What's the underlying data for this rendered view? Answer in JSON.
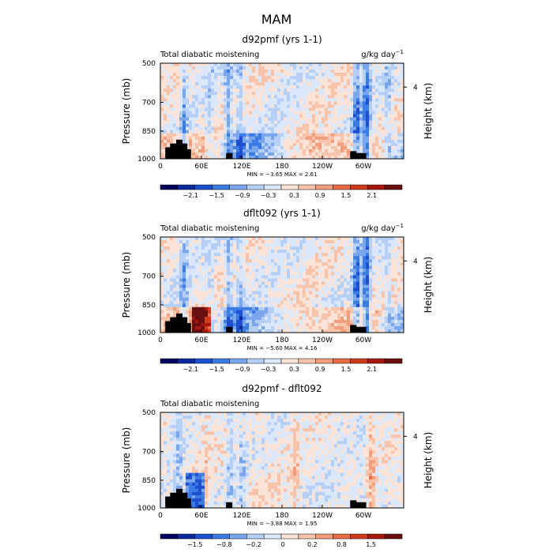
{
  "figure": {
    "title": "MAM"
  },
  "colors": {
    "scale": [
      "#03035e",
      "#0a2a9c",
      "#1e4fd0",
      "#3b7be4",
      "#7aa6ee",
      "#b6cff6",
      "#dbe7fa",
      "#fbe4d7",
      "#f7c3ab",
      "#f29e7c",
      "#e86a45",
      "#cf3b1b",
      "#a5170f",
      "#6a0f0f"
    ],
    "land": "#000000"
  },
  "chart_data": [
    {
      "type": "heatmap",
      "title": "d92pmf (yrs 1-1)",
      "left_label": "Total diabatic moistening",
      "right_label": "g/kg day",
      "right_label_exp": "−1",
      "ylabel": "Pressure (mb)",
      "ylabel_right": "Height (km)",
      "y_ticks": [
        "500",
        "700",
        "850",
        "1000"
      ],
      "y_right_ticks": [
        "4"
      ],
      "x_ticks": [
        "0",
        "60E",
        "120E",
        "180",
        "120W",
        "60W"
      ],
      "min": "−3.65",
      "max": "2.61",
      "colorbar_labels": [
        "−2.1",
        "−1.5",
        "−0.9",
        "−0.3",
        "0.3",
        "0.9",
        "1.5",
        "2.1"
      ]
    },
    {
      "type": "heatmap",
      "title": "dflt092 (yrs 1-1)",
      "left_label": "Total diabatic moistening",
      "right_label": "g/kg day",
      "right_label_exp": "−1",
      "ylabel": "Pressure (mb)",
      "ylabel_right": "Height (km)",
      "y_ticks": [
        "500",
        "700",
        "850",
        "1000"
      ],
      "y_right_ticks": [
        "4"
      ],
      "x_ticks": [
        "0",
        "60E",
        "120E",
        "180",
        "120W",
        "60W"
      ],
      "min": "−5.60",
      "max": "4.16",
      "colorbar_labels": [
        "−2.1",
        "−1.5",
        "−0.9",
        "−0.3",
        "0.3",
        "0.9",
        "1.5",
        "2.1"
      ]
    },
    {
      "type": "heatmap",
      "title": "d92pmf - dflt092",
      "left_label": "Total diabatic moistening",
      "right_label": "",
      "right_label_exp": "",
      "ylabel": "Pressure (mb)",
      "ylabel_right": "Height (km)",
      "y_ticks": [
        "500",
        "700",
        "850",
        "1000"
      ],
      "y_right_ticks": [
        "4"
      ],
      "x_ticks": [
        "0",
        "60E",
        "120E",
        "180",
        "120W",
        "60W"
      ],
      "min": "−3.88",
      "max": "1.95",
      "colorbar_labels": [
        "−1.5",
        "−0.8",
        "−0.2",
        "0",
        "0.2",
        "0.8",
        "1.5"
      ]
    }
  ]
}
